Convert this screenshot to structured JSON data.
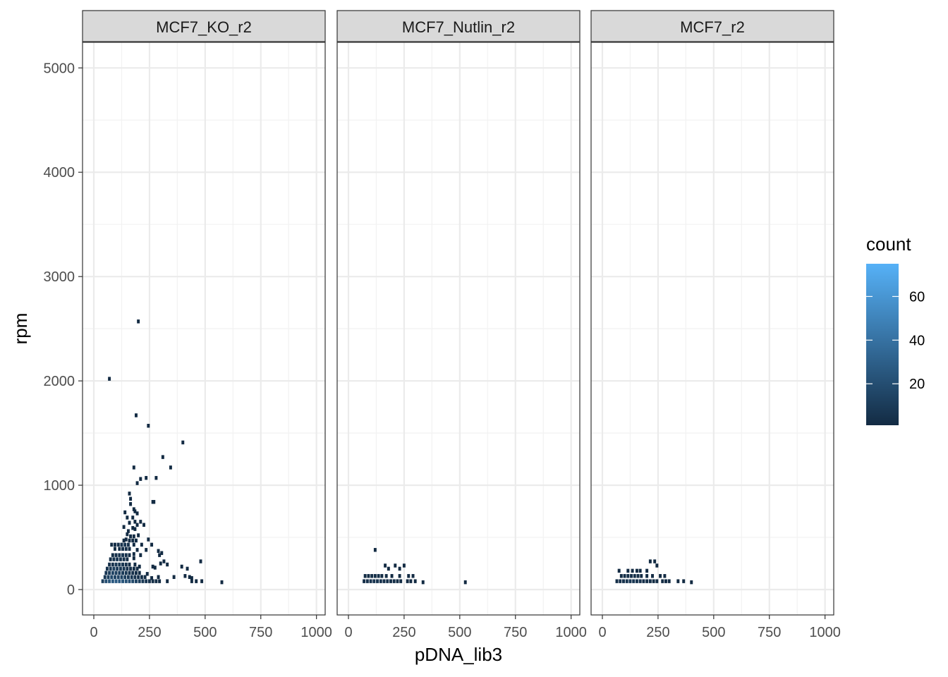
{
  "chart_data": {
    "type": "heatmap",
    "subtype": "2d-bin-count",
    "xlabel": "pDNA_lib3",
    "ylabel": "rpm",
    "xlim": [
      0,
      1000
    ],
    "ylim": [
      0,
      5000
    ],
    "x_ticks": [
      0,
      250,
      500,
      750,
      1000
    ],
    "y_ticks": [
      0,
      1000,
      2000,
      3000,
      4000,
      5000
    ],
    "x_tick_labels": [
      "0",
      "250",
      "500",
      "750",
      "1000"
    ],
    "y_tick_labels": [
      "0",
      "1000",
      "2000",
      "3000",
      "4000",
      "5000"
    ],
    "bin_width": 12.5,
    "bin_height": 37,
    "grid": true,
    "legend": {
      "title": "count",
      "position": "right",
      "min": 1,
      "max": 75,
      "ticks": [
        20,
        40,
        60
      ],
      "color_low": "#132B43",
      "color_high": "#56B1F7"
    },
    "panels": [
      {
        "name": "MCF7_KO_r2",
        "bins": [
          [
            200,
            2570,
            1
          ],
          [
            70,
            2020,
            1
          ],
          [
            190,
            1670,
            1
          ],
          [
            245,
            1570,
            1
          ],
          [
            400,
            1410,
            1
          ],
          [
            310,
            1270,
            1
          ],
          [
            180,
            1170,
            1
          ],
          [
            345,
            1170,
            1
          ],
          [
            235,
            1070,
            1
          ],
          [
            280,
            1070,
            1
          ],
          [
            210,
            1060,
            1
          ],
          [
            195,
            1020,
            1
          ],
          [
            160,
            920,
            1
          ],
          [
            165,
            870,
            1
          ],
          [
            265,
            840,
            1
          ],
          [
            270,
            840,
            1
          ],
          [
            165,
            820,
            1
          ],
          [
            180,
            770,
            1
          ],
          [
            185,
            750,
            1
          ],
          [
            140,
            740,
            1
          ],
          [
            195,
            730,
            1
          ],
          [
            150,
            690,
            1
          ],
          [
            175,
            690,
            1
          ],
          [
            185,
            650,
            1
          ],
          [
            210,
            650,
            1
          ],
          [
            160,
            640,
            1
          ],
          [
            195,
            620,
            1
          ],
          [
            225,
            620,
            2
          ],
          [
            135,
            600,
            1
          ],
          [
            175,
            590,
            1
          ],
          [
            185,
            580,
            1
          ],
          [
            155,
            560,
            1
          ],
          [
            150,
            530,
            2
          ],
          [
            165,
            510,
            1
          ],
          [
            180,
            510,
            1
          ],
          [
            200,
            520,
            1
          ],
          [
            245,
            480,
            1
          ],
          [
            145,
            480,
            1
          ],
          [
            160,
            470,
            1
          ],
          [
            175,
            470,
            1
          ],
          [
            135,
            470,
            1
          ],
          [
            190,
            470,
            1
          ],
          [
            80,
            430,
            2
          ],
          [
            95,
            430,
            3
          ],
          [
            110,
            430,
            4
          ],
          [
            125,
            430,
            6
          ],
          [
            140,
            430,
            7
          ],
          [
            155,
            430,
            5
          ],
          [
            180,
            430,
            2
          ],
          [
            215,
            430,
            1
          ],
          [
            260,
            430,
            1
          ],
          [
            95,
            390,
            2
          ],
          [
            115,
            390,
            3
          ],
          [
            130,
            390,
            5
          ],
          [
            145,
            390,
            4
          ],
          [
            160,
            390,
            3
          ],
          [
            195,
            380,
            1
          ],
          [
            235,
            380,
            1
          ],
          [
            290,
            370,
            1
          ],
          [
            305,
            350,
            1
          ],
          [
            85,
            330,
            3
          ],
          [
            100,
            330,
            4
          ],
          [
            115,
            330,
            6
          ],
          [
            130,
            330,
            7
          ],
          [
            145,
            330,
            5
          ],
          [
            160,
            330,
            3
          ],
          [
            180,
            340,
            2
          ],
          [
            210,
            330,
            1
          ],
          [
            295,
            330,
            1
          ],
          [
            75,
            290,
            3
          ],
          [
            90,
            290,
            5
          ],
          [
            105,
            290,
            7
          ],
          [
            120,
            290,
            6
          ],
          [
            135,
            290,
            5
          ],
          [
            150,
            290,
            3
          ],
          [
            180,
            300,
            1
          ],
          [
            315,
            270,
            1
          ],
          [
            300,
            250,
            1
          ],
          [
            480,
            270,
            1
          ],
          [
            70,
            240,
            4
          ],
          [
            85,
            240,
            6
          ],
          [
            100,
            240,
            9
          ],
          [
            115,
            240,
            8
          ],
          [
            130,
            240,
            7
          ],
          [
            145,
            240,
            5
          ],
          [
            160,
            240,
            3
          ],
          [
            185,
            240,
            2
          ],
          [
            205,
            220,
            1
          ],
          [
            265,
            220,
            1
          ],
          [
            275,
            210,
            1
          ],
          [
            330,
            240,
            1
          ],
          [
            395,
            220,
            1
          ],
          [
            420,
            200,
            1
          ],
          [
            60,
            200,
            6
          ],
          [
            75,
            200,
            9
          ],
          [
            90,
            200,
            12
          ],
          [
            105,
            200,
            10
          ],
          [
            120,
            200,
            9
          ],
          [
            135,
            200,
            7
          ],
          [
            150,
            200,
            5
          ],
          [
            165,
            200,
            4
          ],
          [
            180,
            200,
            3
          ],
          [
            195,
            200,
            2
          ],
          [
            55,
            160,
            7
          ],
          [
            70,
            160,
            11
          ],
          [
            85,
            160,
            15
          ],
          [
            100,
            160,
            13
          ],
          [
            115,
            160,
            12
          ],
          [
            130,
            160,
            10
          ],
          [
            145,
            160,
            8
          ],
          [
            160,
            160,
            6
          ],
          [
            175,
            160,
            4
          ],
          [
            190,
            160,
            3
          ],
          [
            205,
            160,
            2
          ],
          [
            240,
            150,
            1
          ],
          [
            50,
            120,
            9
          ],
          [
            65,
            120,
            13
          ],
          [
            80,
            120,
            17
          ],
          [
            95,
            120,
            16
          ],
          [
            110,
            120,
            15
          ],
          [
            125,
            120,
            14
          ],
          [
            140,
            120,
            12
          ],
          [
            155,
            120,
            10
          ],
          [
            170,
            120,
            8
          ],
          [
            185,
            120,
            6
          ],
          [
            200,
            120,
            5
          ],
          [
            215,
            120,
            3
          ],
          [
            230,
            120,
            2
          ],
          [
            260,
            110,
            1
          ],
          [
            290,
            120,
            1
          ],
          [
            360,
            120,
            1
          ],
          [
            410,
            130,
            1
          ],
          [
            430,
            120,
            1
          ],
          [
            440,
            110,
            1
          ],
          [
            40,
            80,
            12
          ],
          [
            55,
            80,
            20
          ],
          [
            70,
            80,
            24
          ],
          [
            85,
            80,
            26
          ],
          [
            100,
            80,
            27
          ],
          [
            115,
            80,
            26
          ],
          [
            130,
            80,
            24
          ],
          [
            145,
            80,
            22
          ],
          [
            160,
            80,
            20
          ],
          [
            175,
            80,
            17
          ],
          [
            190,
            80,
            14
          ],
          [
            205,
            80,
            11
          ],
          [
            220,
            80,
            8
          ],
          [
            235,
            80,
            6
          ],
          [
            250,
            80,
            4
          ],
          [
            265,
            80,
            3
          ],
          [
            280,
            80,
            2
          ],
          [
            295,
            80,
            1
          ],
          [
            330,
            80,
            1
          ],
          [
            440,
            80,
            1
          ],
          [
            460,
            80,
            1
          ],
          [
            485,
            80,
            1
          ],
          [
            575,
            70,
            1
          ]
        ]
      },
      {
        "name": "MCF7_Nutlin_r2",
        "bins": [
          [
            120,
            380,
            1
          ],
          [
            165,
            230,
            1
          ],
          [
            210,
            230,
            1
          ],
          [
            250,
            230,
            1
          ],
          [
            180,
            200,
            1
          ],
          [
            230,
            200,
            1
          ],
          [
            75,
            130,
            2
          ],
          [
            90,
            130,
            2
          ],
          [
            105,
            130,
            3
          ],
          [
            120,
            130,
            3
          ],
          [
            135,
            130,
            3
          ],
          [
            150,
            130,
            2
          ],
          [
            170,
            130,
            2
          ],
          [
            195,
            130,
            1
          ],
          [
            230,
            130,
            1
          ],
          [
            270,
            130,
            1
          ],
          [
            290,
            130,
            1
          ],
          [
            70,
            80,
            3
          ],
          [
            85,
            80,
            4
          ],
          [
            100,
            80,
            5
          ],
          [
            115,
            80,
            6
          ],
          [
            130,
            80,
            6
          ],
          [
            145,
            80,
            5
          ],
          [
            160,
            80,
            4
          ],
          [
            175,
            80,
            4
          ],
          [
            190,
            80,
            3
          ],
          [
            205,
            80,
            3
          ],
          [
            220,
            80,
            2
          ],
          [
            235,
            80,
            2
          ],
          [
            265,
            80,
            1
          ],
          [
            280,
            80,
            1
          ],
          [
            300,
            80,
            1
          ],
          [
            335,
            70,
            1
          ],
          [
            525,
            70,
            1
          ]
        ]
      },
      {
        "name": "MCF7_r2",
        "bins": [
          [
            215,
            270,
            1
          ],
          [
            235,
            270,
            1
          ],
          [
            245,
            230,
            1
          ],
          [
            75,
            180,
            1
          ],
          [
            115,
            180,
            1
          ],
          [
            135,
            180,
            1
          ],
          [
            155,
            180,
            1
          ],
          [
            170,
            180,
            1
          ],
          [
            200,
            180,
            1
          ],
          [
            85,
            130,
            2
          ],
          [
            100,
            130,
            3
          ],
          [
            115,
            130,
            3
          ],
          [
            130,
            130,
            4
          ],
          [
            145,
            130,
            4
          ],
          [
            160,
            130,
            3
          ],
          [
            175,
            130,
            2
          ],
          [
            200,
            130,
            2
          ],
          [
            225,
            130,
            1
          ],
          [
            260,
            130,
            1
          ],
          [
            280,
            130,
            1
          ],
          [
            65,
            80,
            3
          ],
          [
            80,
            80,
            4
          ],
          [
            95,
            80,
            5
          ],
          [
            110,
            80,
            6
          ],
          [
            125,
            80,
            7
          ],
          [
            140,
            80,
            7
          ],
          [
            155,
            80,
            6
          ],
          [
            170,
            80,
            5
          ],
          [
            185,
            80,
            4
          ],
          [
            200,
            80,
            3
          ],
          [
            215,
            80,
            3
          ],
          [
            230,
            80,
            2
          ],
          [
            245,
            80,
            2
          ],
          [
            270,
            80,
            1
          ],
          [
            285,
            80,
            1
          ],
          [
            300,
            80,
            1
          ],
          [
            340,
            80,
            1
          ],
          [
            365,
            80,
            1
          ],
          [
            400,
            70,
            1
          ]
        ]
      }
    ]
  }
}
